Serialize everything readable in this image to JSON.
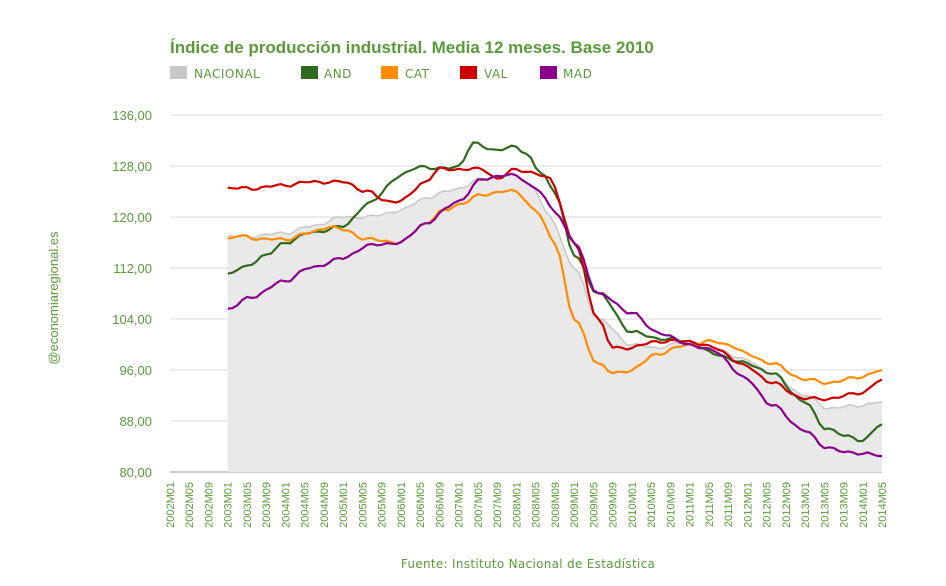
{
  "chart_data": {
    "type": "line",
    "title": "Índice de producción industrial. Media 12 meses. Base 2010",
    "ylabel": "@economiaregional.es",
    "source": "Fuente: Instituto Nacional de Estadística",
    "ylim": [
      80,
      136
    ],
    "yticks": [
      "136,00",
      "128,00",
      "120,00",
      "112,00",
      "104,00",
      "96,00",
      "88,00",
      "80,00"
    ],
    "ytick_values": [
      136,
      128,
      120,
      112,
      104,
      96,
      88,
      80
    ],
    "x_start": "2002M01",
    "x_end": "2014M05",
    "xticks": [
      "2002M01",
      "2002M05",
      "2002M09",
      "2003M01",
      "2003M05",
      "2003M09",
      "2004M01",
      "2004M05",
      "2004M09",
      "2005M01",
      "2005M05",
      "2005M09",
      "2006M01",
      "2006M05",
      "2006M09",
      "2007M01",
      "2007M05",
      "2007M09",
      "2008M01",
      "2008M05",
      "2008M09",
      "2009M01",
      "2009M05",
      "2009M09",
      "2010M01",
      "2010M05",
      "2010M09",
      "2011M01",
      "2011M05",
      "2011M09",
      "2012M01",
      "2012M05",
      "2012M09",
      "2013M01",
      "2013M05",
      "2013M09",
      "2014M01",
      "2014M05"
    ],
    "series": [
      {
        "name": "NACIONAL",
        "color": "#c8c8c8",
        "style": "area",
        "points": [
          [
            "2003M01",
            117
          ],
          [
            "2003M06",
            117
          ],
          [
            "2004M01",
            117.5
          ],
          [
            "2004M06",
            118.5
          ],
          [
            "2005M01",
            120
          ],
          [
            "2005M06",
            120
          ],
          [
            "2006M01",
            121
          ],
          [
            "2006M06",
            123
          ],
          [
            "2007M01",
            124.5
          ],
          [
            "2007M06",
            126
          ],
          [
            "2008M01",
            126.5
          ],
          [
            "2008M04",
            125
          ],
          [
            "2008M08",
            120
          ],
          [
            "2009M01",
            112
          ],
          [
            "2009M06",
            104
          ],
          [
            "2010M01",
            100
          ],
          [
            "2010M06",
            99.5
          ],
          [
            "2011M01",
            100.5
          ],
          [
            "2011M06",
            99.5
          ],
          [
            "2012M01",
            97.5
          ],
          [
            "2012M06",
            95.5
          ],
          [
            "2013M01",
            92
          ],
          [
            "2013M06",
            90
          ],
          [
            "2014M01",
            90.5
          ],
          [
            "2014M05",
            91
          ]
        ]
      },
      {
        "name": "AND",
        "color": "#2e6b1f",
        "style": "line",
        "points": [
          [
            "2003M01",
            111
          ],
          [
            "2003M04",
            112
          ],
          [
            "2003M09",
            114
          ],
          [
            "2004M01",
            116
          ],
          [
            "2004M06",
            117.5
          ],
          [
            "2005M01",
            118.5
          ],
          [
            "2005M06",
            122
          ],
          [
            "2006M01",
            126.5
          ],
          [
            "2006M05",
            128
          ],
          [
            "2006M09",
            127.5
          ],
          [
            "2007M01",
            128
          ],
          [
            "2007M04",
            131.5
          ],
          [
            "2007M09",
            130.5
          ],
          [
            "2008M01",
            131
          ],
          [
            "2008M03",
            130
          ],
          [
            "2008M06",
            127
          ],
          [
            "2008M09",
            124
          ],
          [
            "2009M01",
            114
          ],
          [
            "2009M06",
            108
          ],
          [
            "2010M01",
            102
          ],
          [
            "2010M06",
            101
          ],
          [
            "2011M01",
            100.5
          ],
          [
            "2011M06",
            98.5
          ],
          [
            "2012M01",
            97
          ],
          [
            "2012M06",
            95.5
          ],
          [
            "2013M01",
            91
          ],
          [
            "2013M05",
            87
          ],
          [
            "2013M10",
            85.5
          ],
          [
            "2014M01",
            85
          ],
          [
            "2014M05",
            87.5
          ]
        ]
      },
      {
        "name": "CAT",
        "color": "#ff8c00",
        "style": "line",
        "points": [
          [
            "2003M01",
            116.5
          ],
          [
            "2003M03",
            117
          ],
          [
            "2003M09",
            116.5
          ],
          [
            "2004M01",
            116.5
          ],
          [
            "2004M06",
            117.5
          ],
          [
            "2004M10",
            118.5
          ],
          [
            "2005M01",
            118
          ],
          [
            "2005M06",
            116.5
          ],
          [
            "2006M01",
            116
          ],
          [
            "2006M06",
            119
          ],
          [
            "2006M10",
            121
          ],
          [
            "2007M01",
            122
          ],
          [
            "2007M06",
            123.5
          ],
          [
            "2007M10",
            124
          ],
          [
            "2008M01",
            124
          ],
          [
            "2008M05",
            121
          ],
          [
            "2008M09",
            116
          ],
          [
            "2009M01",
            104
          ],
          [
            "2009M06",
            97
          ],
          [
            "2009M09",
            95.5
          ],
          [
            "2010M01",
            96
          ],
          [
            "2010M06",
            98.5
          ],
          [
            "2011M01",
            100
          ],
          [
            "2011M06",
            100.5
          ],
          [
            "2011M09",
            100
          ],
          [
            "2012M01",
            98.5
          ],
          [
            "2012M06",
            97
          ],
          [
            "2013M01",
            94.5
          ],
          [
            "2013M06",
            94
          ],
          [
            "2014M01",
            95
          ],
          [
            "2014M05",
            96
          ]
        ]
      },
      {
        "name": "VAL",
        "color": "#cc0000",
        "style": "line",
        "points": [
          [
            "2003M01",
            124.5
          ],
          [
            "2003M06",
            124.5
          ],
          [
            "2004M01",
            125
          ],
          [
            "2004M06",
            125.5
          ],
          [
            "2005M01",
            125.5
          ],
          [
            "2005M06",
            124
          ],
          [
            "2005M10",
            122.5
          ],
          [
            "2006M01",
            122.5
          ],
          [
            "2006M06",
            125.5
          ],
          [
            "2006M09",
            127.5
          ],
          [
            "2007M01",
            127.5
          ],
          [
            "2007M06",
            127.5
          ],
          [
            "2007M09",
            126
          ],
          [
            "2008M01",
            127.5
          ],
          [
            "2008M04",
            127
          ],
          [
            "2008M08",
            126
          ],
          [
            "2009M01",
            116
          ],
          [
            "2009M06",
            104
          ],
          [
            "2009M09",
            99.5
          ],
          [
            "2010M01",
            99.5
          ],
          [
            "2010M06",
            100.5
          ],
          [
            "2011M01",
            100.5
          ],
          [
            "2011M06",
            99.5
          ],
          [
            "2012M01",
            96.5
          ],
          [
            "2012M06",
            94
          ],
          [
            "2013M01",
            91.5
          ],
          [
            "2013M06",
            91.5
          ],
          [
            "2014M01",
            92.5
          ],
          [
            "2014M05",
            94.5
          ]
        ]
      },
      {
        "name": "MAD",
        "color": "#8b008b",
        "style": "line",
        "points": [
          [
            "2003M01",
            105.5
          ],
          [
            "2003M06",
            107.5
          ],
          [
            "2004M01",
            110
          ],
          [
            "2004M06",
            112
          ],
          [
            "2005M01",
            113.5
          ],
          [
            "2005M06",
            115.5
          ],
          [
            "2006M01",
            116
          ],
          [
            "2006M06",
            119
          ],
          [
            "2007M01",
            122.5
          ],
          [
            "2007M06",
            126
          ],
          [
            "2007M10",
            126.5
          ],
          [
            "2008M01",
            126.5
          ],
          [
            "2008M05",
            124.5
          ],
          [
            "2008M09",
            121
          ],
          [
            "2009M01",
            116
          ],
          [
            "2009M06",
            108
          ],
          [
            "2010M01",
            105
          ],
          [
            "2010M06",
            102
          ],
          [
            "2011M01",
            100
          ],
          [
            "2011M06",
            99
          ],
          [
            "2012M01",
            94.5
          ],
          [
            "2012M06",
            90.5
          ],
          [
            "2013M01",
            86.5
          ],
          [
            "2013M05",
            84
          ],
          [
            "2013M10",
            83
          ],
          [
            "2014M01",
            83
          ],
          [
            "2014M05",
            82.5
          ]
        ]
      }
    ]
  }
}
